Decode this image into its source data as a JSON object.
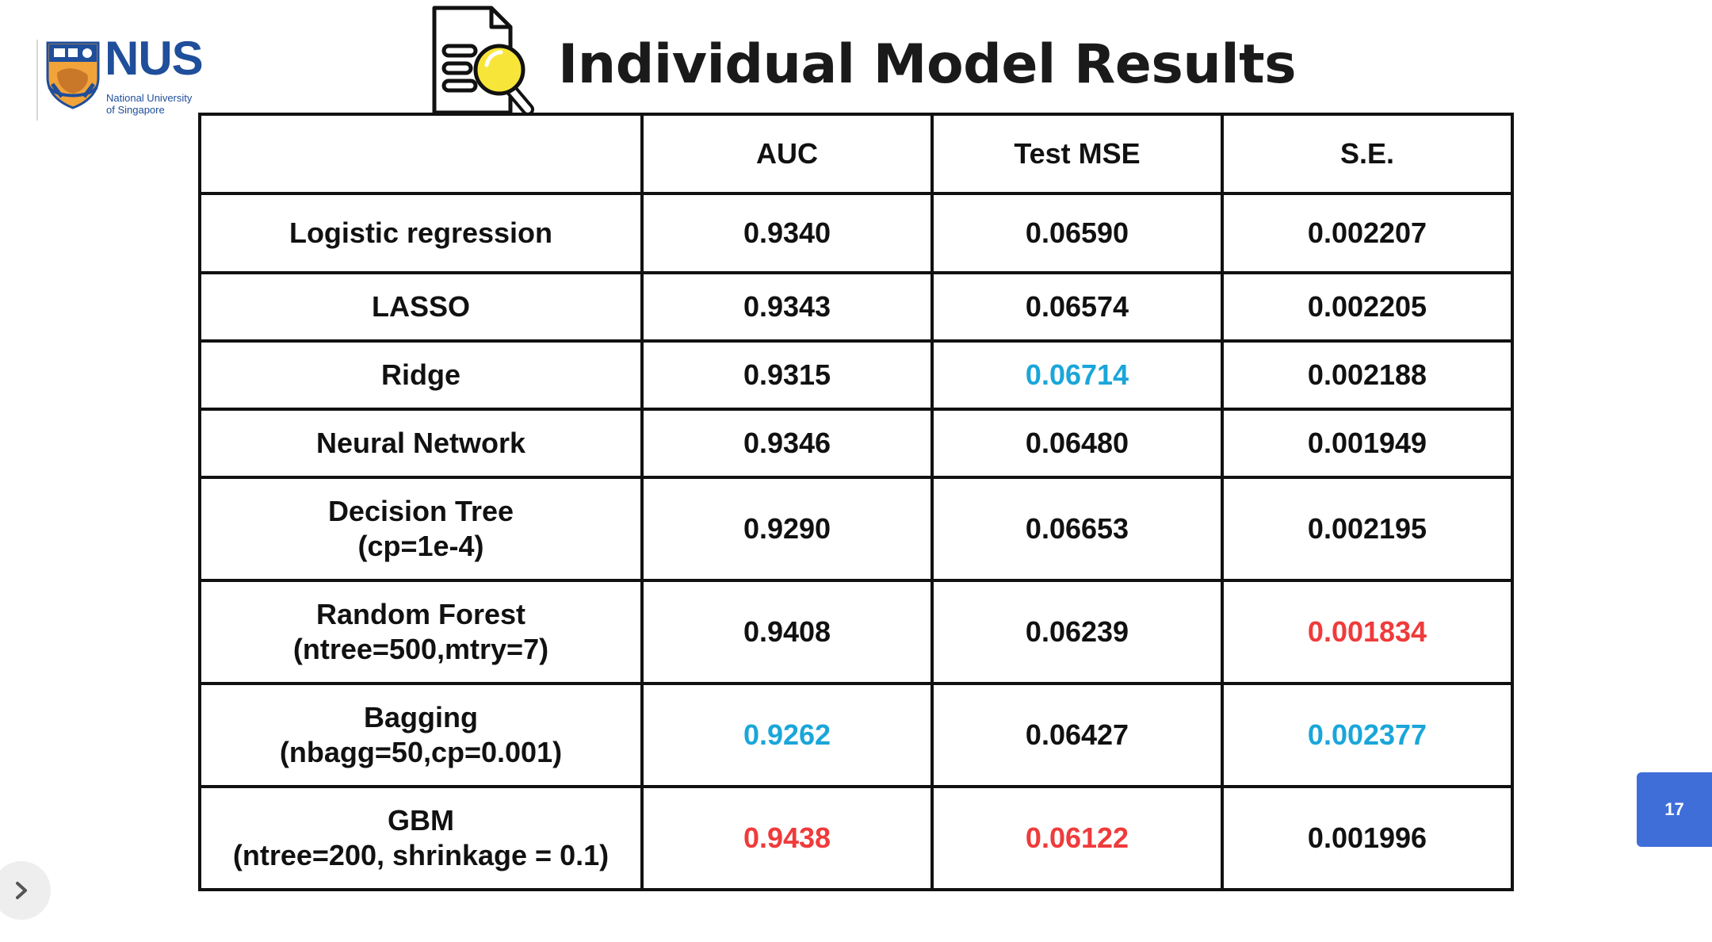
{
  "logo": {
    "wordmark": "NUS",
    "line1": "National University",
    "line2": "of Singapore"
  },
  "title": "Individual Model Results",
  "table": {
    "columns": [
      "",
      "AUC",
      "Test MSE",
      "S.E."
    ],
    "rows": [
      {
        "model": "Logistic regression",
        "params": "",
        "auc": "0.9340",
        "mse": "0.06590",
        "se": "0.002207"
      },
      {
        "model": "LASSO",
        "params": "",
        "auc": "0.9343",
        "mse": "0.06574",
        "se": "0.002205"
      },
      {
        "model": "Ridge",
        "params": "",
        "auc": "0.9315",
        "mse": "0.06714",
        "se": "0.002188"
      },
      {
        "model": "Neural Network",
        "params": "",
        "auc": "0.9346",
        "mse": "0.06480",
        "se": "0.001949"
      },
      {
        "model": "Decision Tree",
        "params": "(cp=1e-4)",
        "auc": "0.9290",
        "mse": "0.06653",
        "se": "0.002195"
      },
      {
        "model": "Random Forest",
        "params": "(ntree=500,mtry=7)",
        "auc": "0.9408",
        "mse": "0.06239",
        "se": "0.001834"
      },
      {
        "model": "Bagging",
        "params": "(nbagg=50,cp=0.001)",
        "auc": "0.9262",
        "mse": "0.06427",
        "se": "0.002377"
      },
      {
        "model": "GBM",
        "params": "(ntree=200, shrinkage = 0.1)",
        "auc": "0.9438",
        "mse": "0.06122",
        "se": "0.001996"
      }
    ]
  },
  "highlight_colors": {
    "worst": "#1aa6d9",
    "best": "#ef3b3b"
  },
  "slide_number": "17"
}
